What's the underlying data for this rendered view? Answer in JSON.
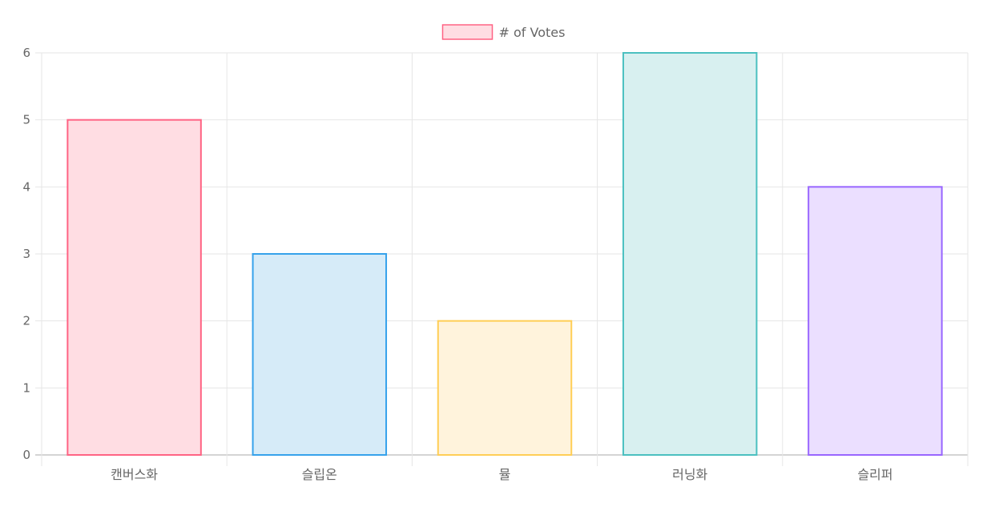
{
  "chart_data": {
    "type": "bar",
    "legend_position": "top-center",
    "grid": true,
    "categories": [
      "캔버스화",
      "슬립온",
      "뮬",
      "러닝화",
      "슬리퍼"
    ],
    "series": [
      {
        "name": "# of Votes",
        "values": [
          5,
          3,
          2,
          6,
          4
        ]
      }
    ],
    "ylim": [
      0,
      6
    ],
    "y_ticks": [
      "0",
      "1",
      "2",
      "3",
      "4",
      "5",
      "6"
    ],
    "colors": {
      "fills": [
        "#ffdde3",
        "#d6ebf8",
        "#fff3dc",
        "#d8f0f0",
        "#ebdfff"
      ],
      "borders": [
        "#ff6384",
        "#36a2eb",
        "#ffce56",
        "#4bc0c0",
        "#9966ff"
      ],
      "grid": "#e6e6e6",
      "axis": "#aaaaaa",
      "text": "#666666"
    }
  }
}
